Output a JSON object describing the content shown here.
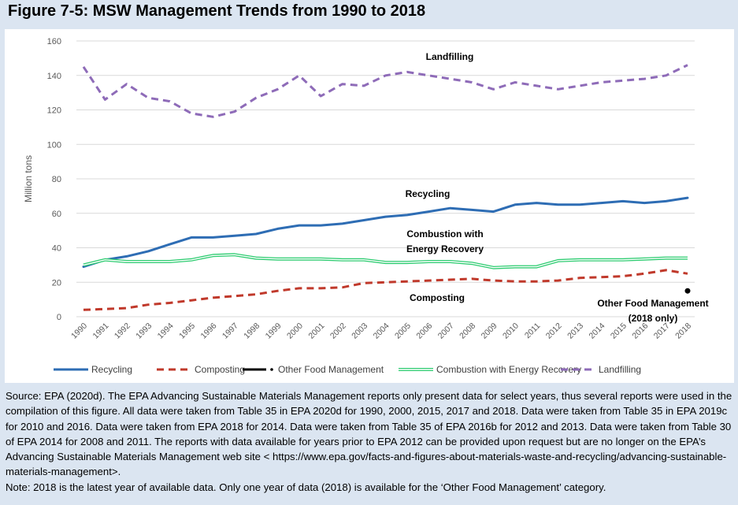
{
  "figure_title": "Figure 7-5:  MSW Management Trends from 1990 to 2018",
  "colors": {
    "Recycling": "#2e6db4",
    "Composting": "#c0392b",
    "Other Food Management": "#000000",
    "Combustion with Energy Recovery": "#2ecc71",
    "Landfilling": "#8e6bb8"
  },
  "chart_data": {
    "type": "line",
    "ylabel": "Million tons",
    "xlabel": "",
    "ylim": [
      0,
      160
    ],
    "yticks": [
      0,
      20,
      40,
      60,
      80,
      100,
      120,
      140,
      160
    ],
    "x": [
      "1990",
      "1991",
      "1992",
      "1993",
      "1994",
      "1995",
      "1996",
      "1997",
      "1998",
      "1999",
      "2000",
      "2001",
      "2002",
      "2003",
      "2004",
      "2005",
      "2006",
      "2007",
      "2008",
      "2009",
      "2010",
      "2011",
      "2012",
      "2013",
      "2014",
      "2015",
      "2016",
      "2017",
      "2018"
    ],
    "grid": true,
    "legend_position": "bottom",
    "series": [
      {
        "name": "Recycling",
        "style": "solid",
        "values": [
          29,
          33,
          35,
          38,
          42,
          46,
          46,
          47,
          48,
          51,
          53,
          53,
          54,
          56,
          58,
          59,
          61,
          63,
          62,
          61,
          65,
          66,
          65,
          65,
          66,
          67,
          66,
          67,
          69
        ]
      },
      {
        "name": "Composting",
        "style": "dashed",
        "values": [
          4,
          4.5,
          5,
          7,
          8,
          9.5,
          11,
          12,
          13,
          15,
          16.5,
          16.5,
          17,
          19.5,
          20,
          20.5,
          21,
          21.5,
          22,
          21,
          20.5,
          20.5,
          21,
          22.5,
          23,
          23.5,
          25,
          27,
          25
        ]
      },
      {
        "name": "Other Food Management",
        "style": "point",
        "values": [
          null,
          null,
          null,
          null,
          null,
          null,
          null,
          null,
          null,
          null,
          null,
          null,
          null,
          null,
          null,
          null,
          null,
          null,
          null,
          null,
          null,
          null,
          null,
          null,
          null,
          null,
          null,
          null,
          15
        ]
      },
      {
        "name": "Combustion with Energy Recovery",
        "style": "double",
        "values": [
          30,
          33,
          32,
          32,
          32,
          33,
          35.5,
          36,
          34,
          33.5,
          33.5,
          33.5,
          33,
          33,
          31.5,
          31.5,
          32,
          32,
          31,
          28.5,
          29,
          29,
          32.5,
          33,
          33,
          33,
          33.5,
          34,
          34
        ]
      },
      {
        "name": "Landfilling",
        "style": "dashed",
        "values": [
          145,
          126,
          135,
          127,
          125,
          118,
          116,
          119,
          127,
          132,
          140,
          128,
          135,
          134,
          140,
          142,
          140,
          138,
          136,
          132,
          136,
          134,
          132,
          134,
          136,
          137,
          138,
          140,
          146
        ]
      }
    ],
    "annotations": [
      {
        "series": "Landfilling",
        "text": "Landfilling"
      },
      {
        "series": "Recycling",
        "text": "Recycling"
      },
      {
        "series": "Combustion with Energy Recovery",
        "lines": [
          "Combustion with",
          "Energy Recovery"
        ]
      },
      {
        "series": "Composting",
        "text": "Composting"
      },
      {
        "series": "Other Food Management",
        "lines": [
          "Other Food Management",
          "(2018 only)"
        ]
      }
    ],
    "legend": [
      "Recycling",
      "Composting",
      "Other Food Management",
      "Combustion with Energy Recovery",
      "Landfilling"
    ]
  },
  "source": {
    "paragraph": "Source: EPA (2020d). The EPA Advancing Sustainable Materials Management reports only present data for select years, thus several reports were used in the compilation of this figure. All data were taken from Table 35 in EPA 2020d for 1990, 2000, 2015, 2017 and 2018. Data were taken from Table 35 in EPA 2019c for 2010 and 2016. Data were taken from EPA 2018 for 2014. Data were taken from Table 35 of EPA 2016b for 2012 and 2013. Data were taken from Table 30 of EPA 2014 for 2008 and 2011. The reports with data available for years prior to EPA 2012 can be provided upon request but are no longer on the EPA’s Advancing Sustainable Materials Management web site < https://www.epa.gov/facts-and-figures-about-materials-waste-and-recycling/advancing-sustainable-materials-management>.",
    "note": "Note: 2018 is the latest year of available data. Only one year of data (2018) is available for the ‘Other Food Management’ category."
  }
}
